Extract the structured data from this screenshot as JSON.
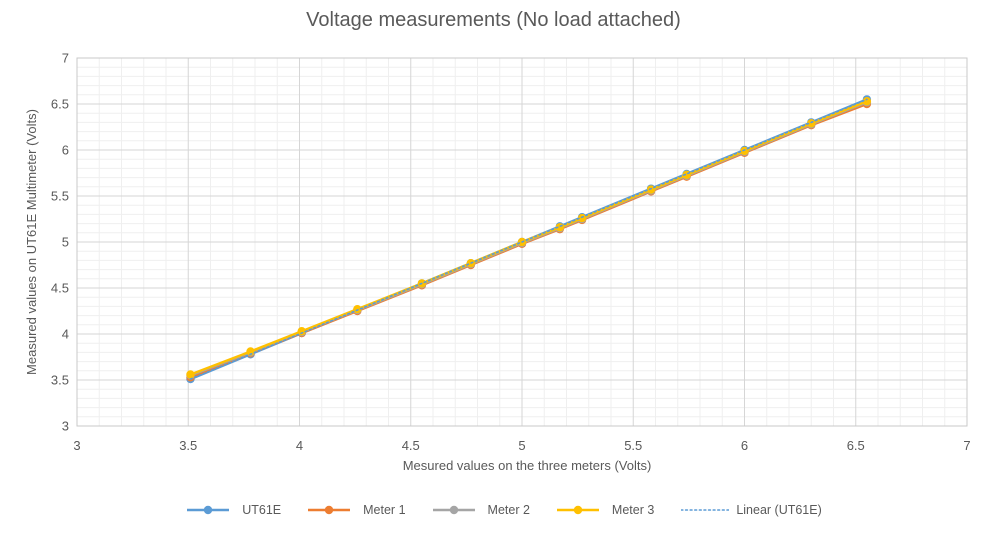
{
  "chart_data": {
    "type": "scatter",
    "title": "Voltage measurements (No load attached)",
    "xlabel": "Mesured values on the three meters (Volts)",
    "ylabel": "Measured values on UT61E Multimeter (Volts)",
    "xlim": [
      3,
      7
    ],
    "ylim": [
      3,
      7
    ],
    "x_ticks": {
      "values": [
        3,
        3.5,
        4,
        4.5,
        5,
        5.5,
        6,
        6.5,
        7
      ],
      "labels": [
        "3",
        "3.5",
        "4",
        "4.5",
        "5",
        "5.5",
        "6",
        "6.5",
        "7"
      ]
    },
    "y_ticks": {
      "values": [
        3,
        3.5,
        4,
        4.5,
        5,
        5.5,
        6,
        6.5,
        7
      ],
      "labels": [
        "3",
        "3.5",
        "4",
        "4.5",
        "5",
        "5.5",
        "6",
        "6.5",
        "7"
      ]
    },
    "grid": {
      "major": true,
      "minor": true,
      "major_step": 0.5,
      "minor_step": 0.1
    },
    "x": [
      3.51,
      3.78,
      4.01,
      4.26,
      4.55,
      4.77,
      5.0,
      5.17,
      5.27,
      5.58,
      5.74,
      6.0,
      6.3,
      6.55
    ],
    "series": [
      {
        "name": "UT61E",
        "color": "#5B9BD5",
        "values": [
          3.51,
          3.78,
          4.01,
          4.26,
          4.55,
          4.77,
          5.0,
          5.17,
          5.27,
          5.58,
          5.74,
          6.0,
          6.3,
          6.55
        ]
      },
      {
        "name": "Meter 1",
        "color": "#ED7D31",
        "values": [
          3.53,
          3.79,
          4.01,
          4.25,
          4.53,
          4.75,
          4.98,
          5.14,
          5.24,
          5.55,
          5.71,
          5.97,
          6.27,
          6.5
        ]
      },
      {
        "name": "Meter 2",
        "color": "#A5A5A5",
        "values": [
          3.55,
          3.8,
          4.02,
          4.26,
          4.54,
          4.76,
          4.99,
          5.15,
          5.25,
          5.56,
          5.72,
          5.98,
          6.28,
          6.52
        ]
      },
      {
        "name": "Meter 3",
        "color": "#FFC000",
        "values": [
          3.56,
          3.81,
          4.03,
          4.27,
          4.55,
          4.77,
          5.0,
          5.16,
          5.26,
          5.57,
          5.73,
          5.99,
          6.29,
          6.53
        ]
      }
    ],
    "trendline": {
      "label": "Linear (UT61E)",
      "color": "#5B9BD5",
      "style": "dotted",
      "slope": 1,
      "intercept": 0,
      "x_range": [
        3.51,
        6.55
      ]
    },
    "legend_position": "bottom",
    "colors": {
      "title_text": "#595959",
      "axis_text": "#595959",
      "gridline_major": "#D6D6D6",
      "gridline_minor": "#EFEFEF",
      "plot_border": "#C9C9C9",
      "background": "#FFFFFF"
    }
  }
}
